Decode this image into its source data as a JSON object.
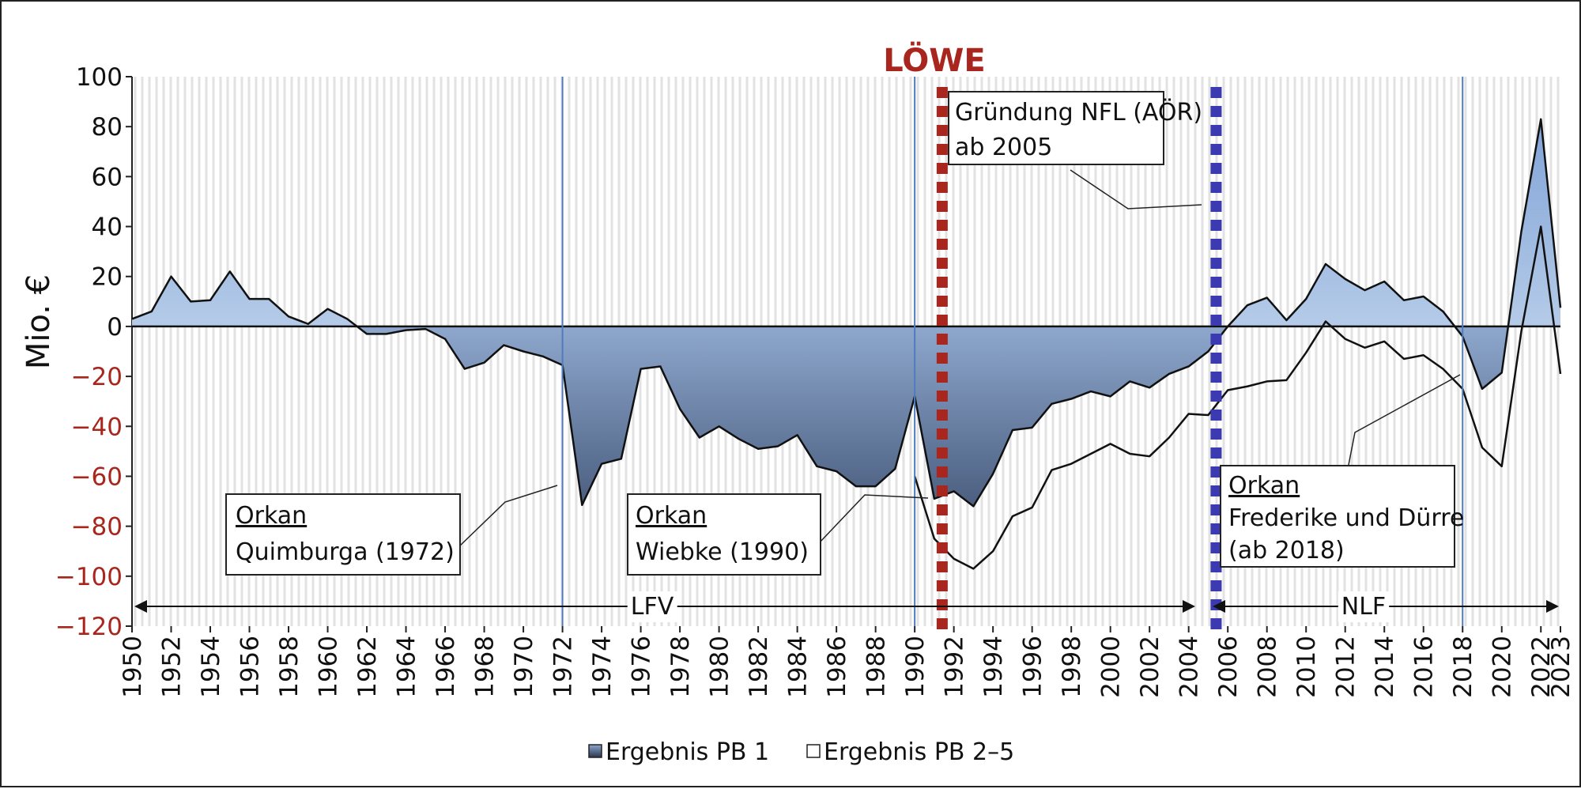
{
  "chart_data": {
    "type": "area",
    "ylabel": "Mio. €",
    "ylim": [
      -120,
      100
    ],
    "yticks": [
      100,
      80,
      60,
      40,
      20,
      0,
      -20,
      -40,
      -60,
      -80,
      -100,
      -120
    ],
    "xlim": [
      1950,
      2023
    ],
    "xticks": [
      1950,
      1952,
      1954,
      1956,
      1958,
      1960,
      1962,
      1964,
      1966,
      1968,
      1970,
      1972,
      1974,
      1976,
      1978,
      1980,
      1982,
      1984,
      1986,
      1988,
      1990,
      1992,
      1994,
      1996,
      1998,
      2000,
      2002,
      2004,
      2006,
      2008,
      2010,
      2012,
      2014,
      2016,
      2018,
      2020,
      2022,
      2023
    ],
    "x": [
      1950,
      1951,
      1952,
      1953,
      1954,
      1955,
      1956,
      1957,
      1958,
      1959,
      1960,
      1961,
      1962,
      1963,
      1964,
      1965,
      1966,
      1967,
      1968,
      1969,
      1970,
      1971,
      1972,
      1973,
      1974,
      1975,
      1976,
      1977,
      1978,
      1979,
      1980,
      1981,
      1982,
      1983,
      1984,
      1985,
      1986,
      1987,
      1988,
      1989,
      1990,
      1991,
      1992,
      1993,
      1994,
      1995,
      1996,
      1997,
      1998,
      1999,
      2000,
      2001,
      2002,
      2003,
      2004,
      2005,
      2006,
      2007,
      2008,
      2009,
      2010,
      2011,
      2012,
      2013,
      2014,
      2015,
      2016,
      2017,
      2018,
      2019,
      2020,
      2021,
      2022,
      2023
    ],
    "series": [
      {
        "name": "Ergebnis PB 1",
        "values": [
          3,
          6,
          20,
          10,
          10.5,
          22,
          11,
          11,
          4,
          1,
          7,
          3,
          -3,
          -3,
          -1.5,
          -1,
          -5,
          -17,
          -14.5,
          -7.5,
          -10,
          -12,
          -15.5,
          -71.5,
          -55,
          -53,
          -17,
          -16,
          -33,
          -44.5,
          -40,
          -45,
          -49,
          -48,
          -43.5,
          -56,
          -58,
          -64,
          -64,
          -57,
          -28,
          -69,
          -66,
          -72,
          -59,
          -41.5,
          -40.5,
          -31,
          -29,
          -26,
          -28,
          -22,
          -24.5,
          -19,
          -16,
          -10,
          0,
          8.5,
          11.5,
          2.5,
          11,
          25,
          19,
          14.5,
          18,
          10.5,
          12,
          6,
          -4,
          -25,
          -18.5,
          38,
          83,
          7.5
        ]
      },
      {
        "name": "Ergebnis PB 2–5",
        "values": [
          null,
          null,
          null,
          null,
          null,
          null,
          null,
          null,
          null,
          null,
          null,
          null,
          null,
          null,
          null,
          null,
          null,
          null,
          null,
          null,
          null,
          null,
          null,
          null,
          null,
          null,
          null,
          null,
          null,
          null,
          null,
          null,
          null,
          null,
          null,
          null,
          null,
          null,
          null,
          null,
          -60,
          -85,
          -93,
          -97,
          -90,
          -76,
          -72.5,
          -57.5,
          -55,
          -51,
          -47,
          -51,
          -52,
          -44.5,
          -35,
          -35.5,
          -25.5,
          -24,
          -22,
          -21.5,
          -10.5,
          2,
          -5,
          -8.5,
          -6,
          -13,
          -11.5,
          -17,
          -25,
          -48.5,
          -56,
          -2,
          40,
          -19
        ]
      }
    ],
    "events": [
      {
        "year": 1972,
        "style": "thin-line",
        "color": "#4f7bbf"
      },
      {
        "year": 1990,
        "style": "thin-line",
        "color": "#4f7bbf"
      },
      {
        "year": 1991,
        "style": "thick-dotted",
        "color": "#a8261e"
      },
      {
        "year": 2005,
        "style": "thick-dotted",
        "color": "#3c3ab0"
      },
      {
        "year": 2018,
        "style": "thin-line",
        "color": "#4f7bbf"
      }
    ],
    "loewe_label": "LÖWE",
    "eras": [
      {
        "label": "LFV",
        "from": 1950,
        "to": 2005
      },
      {
        "label": "NLF",
        "from": 2005,
        "to": 2023
      }
    ],
    "callouts": {
      "nfl": {
        "line1": "Gründung NFL (AÖR)",
        "line2": "ab 2005"
      },
      "quimburga": {
        "title": "Orkan",
        "text": "Quimburga (1972)"
      },
      "wiebke": {
        "title": "Orkan",
        "text": "Wiebke (1990)"
      },
      "frederike": {
        "title": "Orkan",
        "line1": "Frederike und Dürre",
        "line2": "(ab 2018)"
      }
    },
    "colors": {
      "positive_tick": "#111111",
      "negative_tick": "#a8261e",
      "grid_stripe": "#e2e2e2",
      "loewe": "#a8261e",
      "nfl": "#3c3ab0",
      "storm_line": "#4f7bbf"
    },
    "grid": true,
    "legend_position": "bottom-center"
  }
}
